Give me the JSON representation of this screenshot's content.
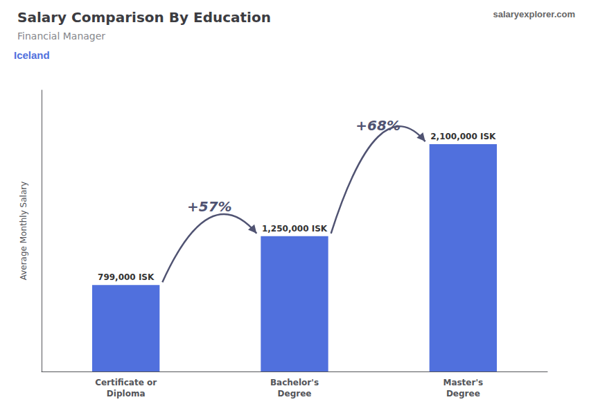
{
  "chart_data": {
    "type": "bar",
    "title": "Salary Comparison By Education",
    "subtitle": "Financial Manager",
    "ylabel": "Average Monthly Salary",
    "categories": [
      "Certificate or\nDiploma",
      "Bachelor's\nDegree",
      "Master's\nDegree"
    ],
    "values": [
      799000,
      1250000,
      2100000
    ],
    "value_labels": [
      "799,000 ISK",
      "1,250,000 ISK",
      "2,100,000 ISK"
    ],
    "data_labels": true,
    "ylim": [
      0,
      2600000
    ],
    "tick_labels": "x",
    "grid": false,
    "annotations": [
      {
        "text": "Iceland"
      },
      {
        "text": "salaryexplorer.com"
      },
      {
        "text": "+57%",
        "from": "Certificate or\nDiploma",
        "to": "Bachelor's\nDegree"
      },
      {
        "text": "+68%",
        "from": "Bachelor's\nDegree",
        "to": "Master's\nDegree"
      }
    ]
  }
}
